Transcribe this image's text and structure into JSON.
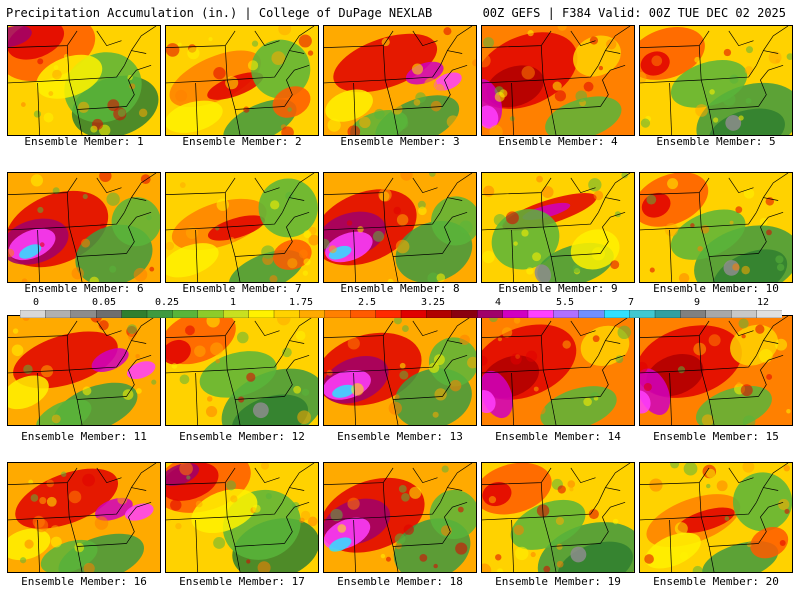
{
  "header": {
    "left": "Precipitation Accumulation (in.) | College of DuPage NEXLAB",
    "right": "00Z GEFS | F384 Valid: 00Z TUE DEC 02 2025"
  },
  "panels": [
    {
      "label": "Ensemble Member: 1",
      "scheme": "wet-nw"
    },
    {
      "label": "Ensemble Member: 2",
      "scheme": "moderate"
    },
    {
      "label": "Ensemble Member: 3",
      "scheme": "wet-east"
    },
    {
      "label": "Ensemble Member: 4",
      "scheme": "very-wet"
    },
    {
      "label": "Ensemble Member: 5",
      "scheme": "dry-se"
    },
    {
      "label": "Ensemble Member: 6",
      "scheme": "extreme-sw"
    },
    {
      "label": "Ensemble Member: 7",
      "scheme": "moderate"
    },
    {
      "label": "Ensemble Member: 8",
      "scheme": "extreme-sw"
    },
    {
      "label": "Ensemble Member: 9",
      "scheme": "band"
    },
    {
      "label": "Ensemble Member: 10",
      "scheme": "dry-se"
    },
    {
      "label": "Ensemble Member: 11",
      "scheme": "wet-east"
    },
    {
      "label": "Ensemble Member: 12",
      "scheme": "dry-se"
    },
    {
      "label": "Ensemble Member: 13",
      "scheme": "extreme-sw"
    },
    {
      "label": "Ensemble Member: 14",
      "scheme": "very-wet"
    },
    {
      "label": "Ensemble Member: 15",
      "scheme": "very-wet"
    },
    {
      "label": "Ensemble Member: 16",
      "scheme": "wet-east"
    },
    {
      "label": "Ensemble Member: 17",
      "scheme": "wet-nw"
    },
    {
      "label": "Ensemble Member: 18",
      "scheme": "extreme-sw"
    },
    {
      "label": "Ensemble Member: 19",
      "scheme": "dry-se"
    },
    {
      "label": "Ensemble Member: 20",
      "scheme": "moderate"
    }
  ],
  "colorbar": {
    "tick_labels": [
      "0",
      "0.05",
      "0.25",
      "1",
      "1.75",
      "2.5",
      "3.25",
      "4",
      "5.5",
      "7",
      "9",
      "12"
    ],
    "colors": [
      "#d8d8d8",
      "#b0b0b0",
      "#8c8c8c",
      "#6e6e6e",
      "#2f7f2f",
      "#3f9a3f",
      "#59b53a",
      "#8dcc2a",
      "#c8e020",
      "#fff200",
      "#ffd200",
      "#ffaa00",
      "#ff8000",
      "#ff5a00",
      "#ff2a00",
      "#e00000",
      "#b00000",
      "#8a0010",
      "#a0006a",
      "#d000c0",
      "#ff40ff",
      "#b070ff",
      "#7090ff",
      "#30e0ff",
      "#40c8d0",
      "#30a0a0",
      "#808080",
      "#a8a8a8",
      "#c8c8c8",
      "#e0e0e0"
    ]
  }
}
